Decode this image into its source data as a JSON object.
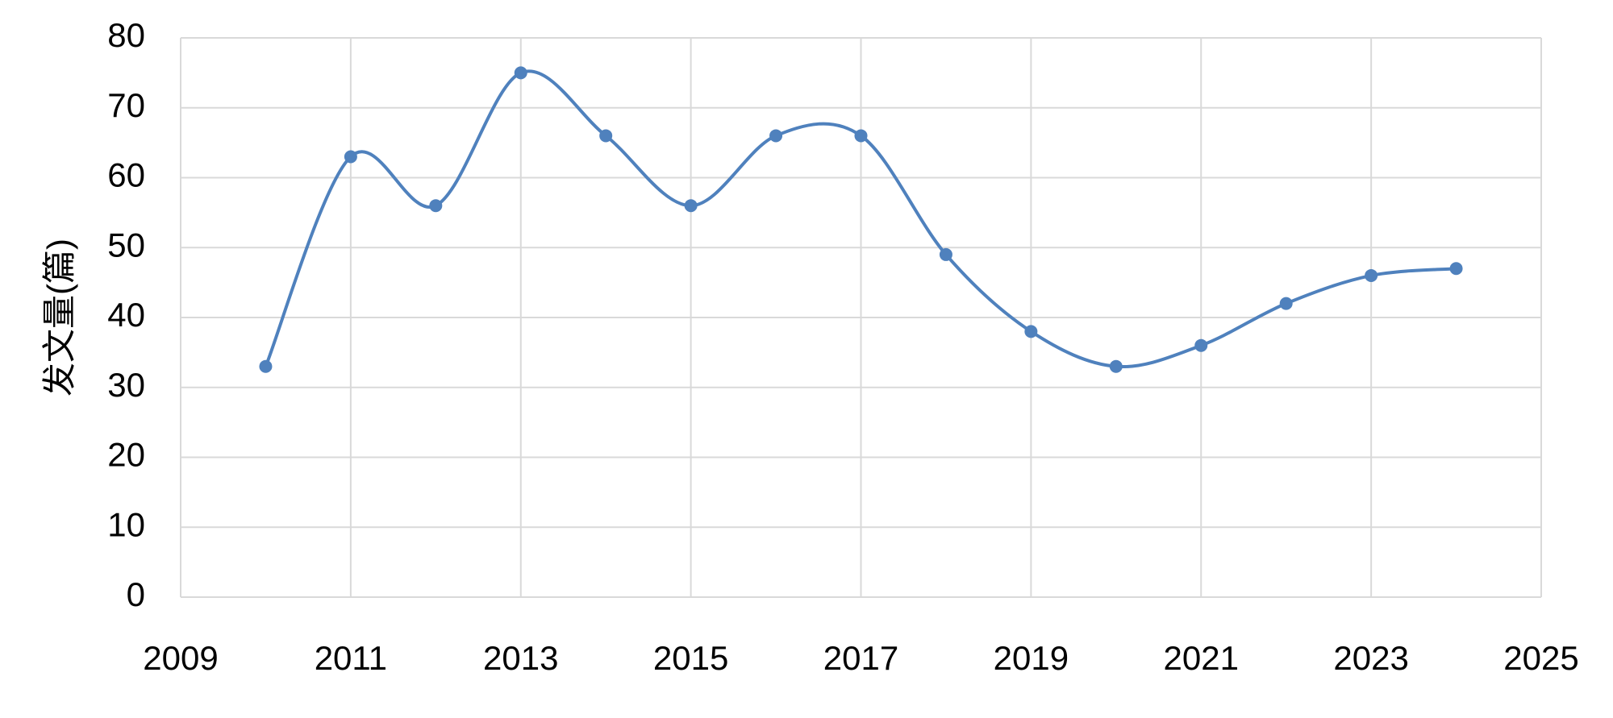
{
  "chart_data": {
    "type": "line",
    "y_label": "发文量(篇)",
    "x": [
      2010,
      2011,
      2012,
      2013,
      2014,
      2015,
      2016,
      2017,
      2018,
      2019,
      2020,
      2021,
      2022,
      2023,
      2024
    ],
    "series": [
      {
        "color": "#4f81bd",
        "values": [
          33,
          63,
          56,
          75,
          66,
          56,
          66,
          66,
          49,
          38,
          33,
          36,
          42,
          46,
          47
        ]
      }
    ],
    "xlim": [
      2009,
      2025
    ],
    "xticks": [
      2009,
      2011,
      2013,
      2015,
      2017,
      2019,
      2021,
      2023,
      2025
    ],
    "ylim": [
      0,
      80
    ],
    "yticks": [
      0,
      10,
      20,
      30,
      40,
      50,
      60,
      70,
      80
    ],
    "grid": true,
    "smooth": true
  }
}
